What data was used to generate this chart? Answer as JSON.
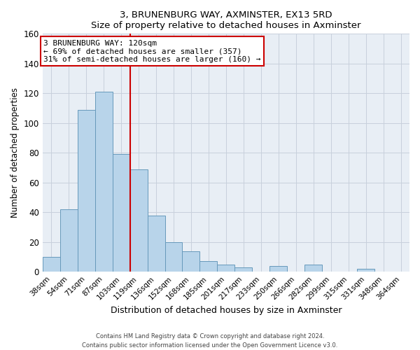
{
  "title": "3, BRUNENBURG WAY, AXMINSTER, EX13 5RD",
  "subtitle": "Size of property relative to detached houses in Axminster",
  "xlabel": "Distribution of detached houses by size in Axminster",
  "ylabel": "Number of detached properties",
  "bar_labels": [
    "38sqm",
    "54sqm",
    "71sqm",
    "87sqm",
    "103sqm",
    "119sqm",
    "136sqm",
    "152sqm",
    "168sqm",
    "185sqm",
    "201sqm",
    "217sqm",
    "233sqm",
    "250sqm",
    "266sqm",
    "282sqm",
    "299sqm",
    "315sqm",
    "331sqm",
    "348sqm",
    "364sqm"
  ],
  "bar_heights": [
    10,
    42,
    109,
    121,
    79,
    69,
    38,
    20,
    14,
    7,
    5,
    3,
    0,
    4,
    0,
    5,
    0,
    0,
    2,
    0,
    0
  ],
  "bar_color": "#b8d4ea",
  "bar_edge_color": "#6699bb",
  "property_line_color": "#cc0000",
  "annotation_title": "3 BRUNENBURG WAY: 120sqm",
  "annotation_line1": "← 69% of detached houses are smaller (357)",
  "annotation_line2": "31% of semi-detached houses are larger (160) →",
  "annotation_box_color": "#ffffff",
  "annotation_box_edge_color": "#cc0000",
  "ylim": [
    0,
    160
  ],
  "yticks": [
    0,
    20,
    40,
    60,
    80,
    100,
    120,
    140,
    160
  ],
  "footer_line1": "Contains HM Land Registry data © Crown copyright and database right 2024.",
  "footer_line2": "Contains public sector information licensed under the Open Government Licence v3.0.",
  "background_color": "#ffffff",
  "plot_bg_color": "#e8eef5",
  "grid_color": "#c8d0dc"
}
